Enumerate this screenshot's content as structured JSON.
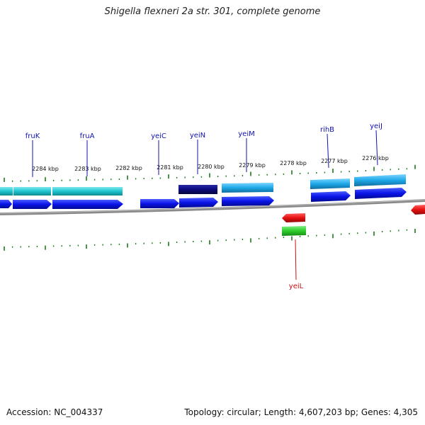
{
  "header": {
    "title": "Shigella flexneri 2a str. 301, complete genome"
  },
  "footer": {
    "accession": "Accession: NC_004337",
    "summary": "Topology: circular; Length: 4,607,203 bp; Genes: 4,305"
  },
  "colors": {
    "backbone": "#888888",
    "tick": "#1a7a1a",
    "gene_blue": "#0a14e8",
    "gene_cyan": "#1ec6d0",
    "gene_sky": "#1ea8e8",
    "gene_navy": "#0a0a7a",
    "gene_red": "#e81010",
    "gene_green": "#2ccc2c",
    "label_blue": "#1010b0",
    "label_red": "#c81010"
  },
  "scale": {
    "tick_labels": [
      {
        "text": "2284 kbp"
      },
      {
        "text": "2283 kbp"
      },
      {
        "text": "2282 kbp"
      },
      {
        "text": "2281 kbp"
      },
      {
        "text": "2280 kbp"
      },
      {
        "text": "2279 kbp"
      },
      {
        "text": "2278 kbp"
      },
      {
        "text": "2277 kbp"
      },
      {
        "text": "2276 kbp"
      }
    ]
  },
  "gene_labels": [
    {
      "text": "fruK",
      "color": "label_blue"
    },
    {
      "text": "fruA",
      "color": "label_blue"
    },
    {
      "text": "yeiC",
      "color": "label_blue"
    },
    {
      "text": "yeiN",
      "color": "label_blue"
    },
    {
      "text": "yeiM",
      "color": "label_blue"
    },
    {
      "text": "rihB",
      "color": "label_blue"
    },
    {
      "text": "yeiJ",
      "color": "label_blue"
    },
    {
      "text": "yeiL",
      "color": "label_red"
    }
  ]
}
